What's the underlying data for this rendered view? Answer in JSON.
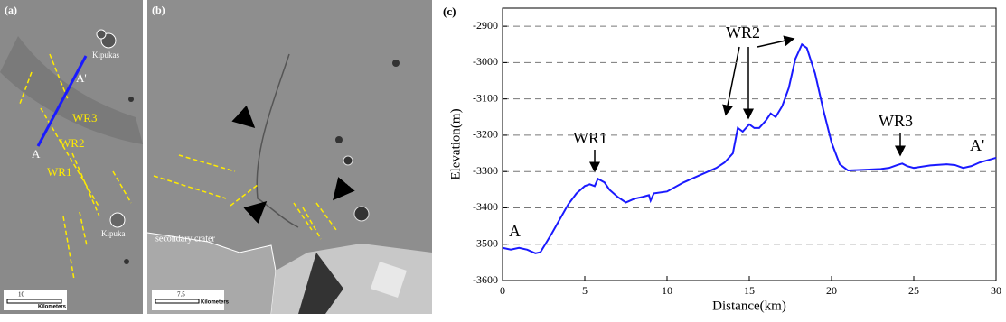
{
  "panels": {
    "a": {
      "label": "(a)",
      "point_a2": "A'",
      "point_a": "A",
      "ridges": [
        "WR3",
        "WR2",
        "WR1"
      ],
      "kipukas": "Kipukas",
      "kipuka": "Kipuka",
      "scale": "10",
      "scale_unit": "Kilometers"
    },
    "b": {
      "label": "(b)",
      "crater": "secondary crater",
      "scale": "7.5",
      "scale_unit": "Kilometers"
    }
  },
  "chart_data": {
    "type": "line",
    "panel_label": "(c)",
    "x_label": "Distance(km)",
    "y_label": "Elevation(m)",
    "annotations": [
      "A",
      "A'",
      "WR1",
      "WR2",
      "WR3"
    ],
    "xlim": [
      0,
      30
    ],
    "xticks": [
      0,
      5,
      10,
      15,
      20,
      25,
      30
    ],
    "ylim": [
      -3600,
      -2850
    ],
    "yticks": [
      -3600,
      -3500,
      -3400,
      -3300,
      -3200,
      -3100,
      -3000,
      -2900
    ],
    "grid": true,
    "series": [
      {
        "color": "#1a1aff",
        "x": [
          0,
          0.5,
          1,
          1.5,
          2,
          2.3,
          2.6,
          3,
          3.5,
          4,
          4.5,
          5,
          5.3,
          5.6,
          5.8,
          6.2,
          6.5,
          7,
          7.5,
          8,
          8.5,
          8.9,
          9,
          9.2,
          10,
          11,
          12,
          13,
          13.5,
          14,
          14.3,
          14.6,
          15,
          15.3,
          15.6,
          16,
          16.3,
          16.6,
          17,
          17.4,
          17.8,
          18.2,
          18.5,
          19,
          19.5,
          20,
          20.5,
          21,
          22,
          23,
          23.5,
          24,
          24.3,
          24.6,
          25,
          26,
          27,
          27.5,
          28,
          28.5,
          29,
          30
        ],
        "values": [
          -3510,
          -3515,
          -3510,
          -3515,
          -3525,
          -3522,
          -3500,
          -3470,
          -3430,
          -3390,
          -3360,
          -3340,
          -3335,
          -3340,
          -3320,
          -3330,
          -3350,
          -3370,
          -3385,
          -3375,
          -3370,
          -3365,
          -3380,
          -3360,
          -3355,
          -3330,
          -3310,
          -3290,
          -3275,
          -3250,
          -3180,
          -3190,
          -3170,
          -3180,
          -3180,
          -3160,
          -3140,
          -3150,
          -3120,
          -3070,
          -2990,
          -2950,
          -2960,
          -3030,
          -3130,
          -3220,
          -3280,
          -3297,
          -3295,
          -3293,
          -3290,
          -3282,
          -3278,
          -3285,
          -3290,
          -3283,
          -3280,
          -3282,
          -3290,
          -3285,
          -3275,
          -3262
        ]
      }
    ]
  }
}
